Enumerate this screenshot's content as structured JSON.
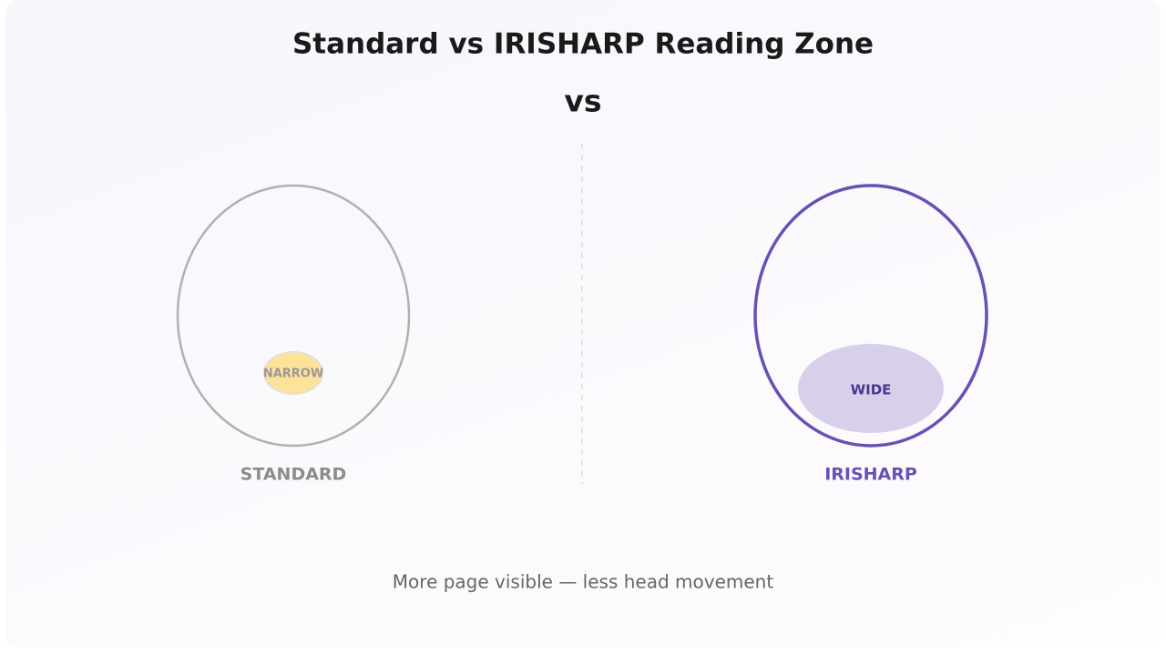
{
  "title": "Standard vs IRISHARP Reading Zone",
  "separator": "vs",
  "left": {
    "zone_label": "NARROW",
    "label": "STANDARD"
  },
  "right": {
    "zone_label": "WIDE",
    "label": "IRISHARP"
  },
  "caption": "More page visible — less head movement"
}
